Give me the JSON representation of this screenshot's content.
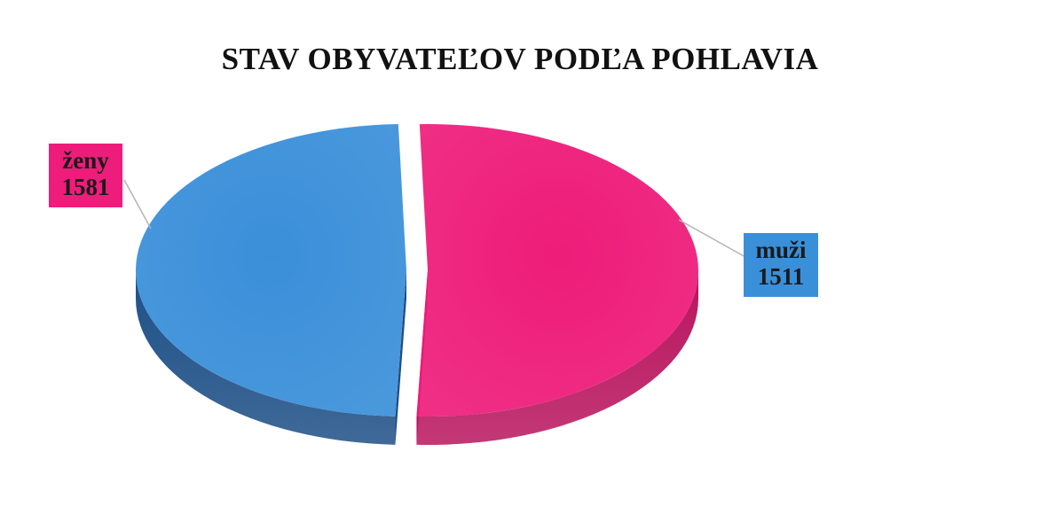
{
  "chart_data": {
    "type": "pie",
    "title": "STAV OBYVATEĽOV PODĽA POHLAVIA",
    "slices": [
      {
        "label": "ženy",
        "value": 1581,
        "color": "#ee1c7a",
        "side_color": "#b8155e"
      },
      {
        "label": "muži",
        "value": 1511,
        "color": "#3a8fd9",
        "side_color": "#1d4f86"
      }
    ],
    "style": "3d-exploded",
    "legend": "none"
  }
}
